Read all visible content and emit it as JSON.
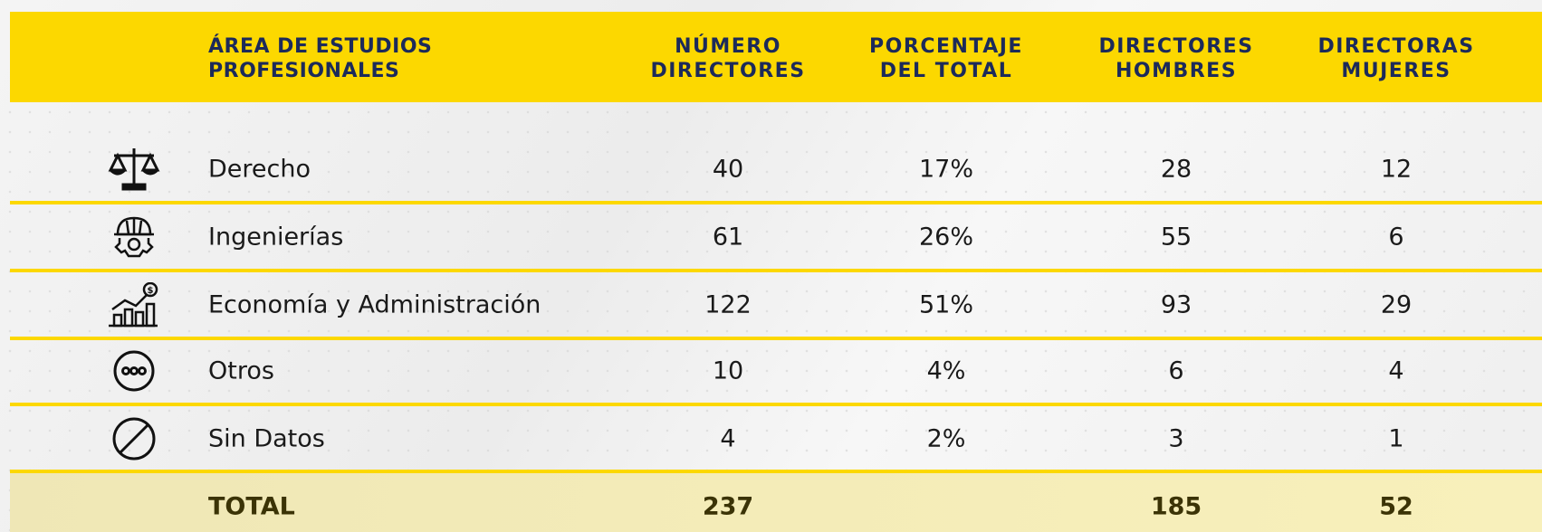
{
  "table": {
    "headers": [
      [
        "ÁREA DE ESTUDIOS",
        "PROFESIONALES"
      ],
      [
        "NÚMERO",
        "DIRECTORES"
      ],
      [
        "PORCENTAJE",
        "DEL TOTAL"
      ],
      [
        "DIRECTORES",
        "HOMBRES"
      ],
      [
        "DIRECTORAS",
        "MUJERES"
      ]
    ],
    "rows": [
      [
        "Derecho",
        "40",
        "17%",
        "28",
        "12"
      ],
      [
        "Ingenierías",
        "61",
        "26%",
        "55",
        "6"
      ],
      [
        "Economía y Administración",
        "122",
        "51%",
        "93",
        "29"
      ],
      [
        "Otros",
        "10",
        "4%",
        "6",
        "4"
      ],
      [
        "Sin Datos",
        "4",
        "2%",
        "3",
        "1"
      ]
    ],
    "total": {
      "label": "TOTAL",
      "numero_directores": "237",
      "directores_hombres": "185",
      "directoras_mujeres": "52"
    }
  }
}
